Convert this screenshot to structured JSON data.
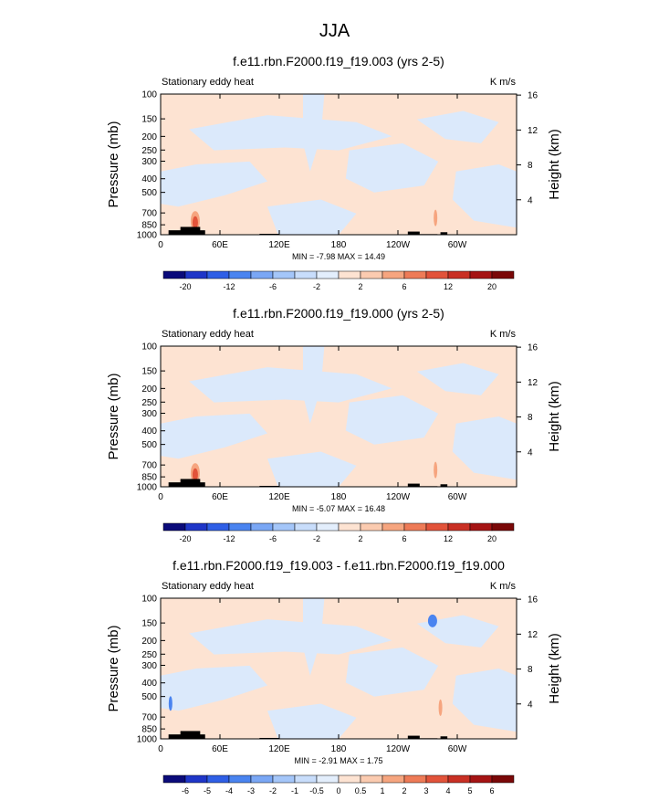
{
  "figure_title": "JJA",
  "chart_data": [
    {
      "type": "heatmap",
      "title": "f.e11.rbn.F2000.f19_f19.003 (yrs 2-5)",
      "left_label": "Stationary eddy heat",
      "units": "K m/s",
      "ylabel": "Pressure (mb)",
      "y2label": "Height (km)",
      "y_ticks": [
        "100",
        "150",
        "200",
        "250",
        "300",
        "400",
        "500",
        "700",
        "850",
        "1000"
      ],
      "y2_ticks": [
        "16",
        "12",
        "8",
        "4"
      ],
      "x_ticks": [
        "0",
        "60E",
        "120E",
        "180",
        "120W",
        "60W"
      ],
      "min_max_text": "MIN = -7.98  MAX = 14.49",
      "colorbar_levels": [
        "-20",
        "-12",
        "-6",
        "-2",
        "2",
        "6",
        "12",
        "20"
      ],
      "colorbar_colors": [
        "#0b0b7a",
        "#1f36c8",
        "#2f5fe6",
        "#4a84f0",
        "#7aa7f5",
        "#a4c6f9",
        "#c8ddfb",
        "#e3eefc",
        "#fde3d2",
        "#fbcbb0",
        "#f6a57f",
        "#ee7b57",
        "#e2533a",
        "#c93024",
        "#a51414",
        "#7a0808"
      ]
    },
    {
      "type": "heatmap",
      "title": "f.e11.rbn.F2000.f19_f19.000 (yrs 2-5)",
      "left_label": "Stationary eddy heat",
      "units": "K m/s",
      "ylabel": "Pressure (mb)",
      "y2label": "Height (km)",
      "y_ticks": [
        "100",
        "150",
        "200",
        "250",
        "300",
        "400",
        "500",
        "700",
        "850",
        "1000"
      ],
      "y2_ticks": [
        "16",
        "12",
        "8",
        "4"
      ],
      "x_ticks": [
        "0",
        "60E",
        "120E",
        "180",
        "120W",
        "60W"
      ],
      "min_max_text": "MIN = -5.07  MAX = 16.48",
      "colorbar_levels": [
        "-20",
        "-12",
        "-6",
        "-2",
        "2",
        "6",
        "12",
        "20"
      ],
      "colorbar_colors": [
        "#0b0b7a",
        "#1f36c8",
        "#2f5fe6",
        "#4a84f0",
        "#7aa7f5",
        "#a4c6f9",
        "#c8ddfb",
        "#e3eefc",
        "#fde3d2",
        "#fbcbb0",
        "#f6a57f",
        "#ee7b57",
        "#e2533a",
        "#c93024",
        "#a51414",
        "#7a0808"
      ]
    },
    {
      "type": "heatmap",
      "title": "f.e11.rbn.F2000.f19_f19.003 - f.e11.rbn.F2000.f19_f19.000",
      "left_label": "Stationary eddy heat",
      "units": "K m/s",
      "ylabel": "Pressure (mb)",
      "y2label": "Height (km)",
      "y_ticks": [
        "100",
        "150",
        "200",
        "250",
        "300",
        "400",
        "500",
        "700",
        "850",
        "1000"
      ],
      "y2_ticks": [
        "16",
        "12",
        "8",
        "4"
      ],
      "x_ticks": [
        "0",
        "60E",
        "120E",
        "180",
        "120W",
        "60W"
      ],
      "min_max_text": "MIN = -2.91  MAX =  1.75",
      "colorbar_levels": [
        "-6",
        "-5",
        "-4",
        "-3",
        "-2",
        "-1",
        "-0.5",
        "0",
        "0.5",
        "1",
        "2",
        "3",
        "4",
        "5",
        "6"
      ],
      "colorbar_colors": [
        "#0b0b7a",
        "#1f36c8",
        "#2f5fe6",
        "#4a84f0",
        "#7aa7f5",
        "#a4c6f9",
        "#c8ddfb",
        "#e3eefc",
        "#fde3d2",
        "#fbcbb0",
        "#f6a57f",
        "#ee7b57",
        "#e2533a",
        "#c93024",
        "#a51414",
        "#7a0808"
      ]
    }
  ],
  "fill_colors": {
    "positive": "#fde3d2",
    "negative": "#dbe9fb",
    "blob_red": "#e2533a",
    "blob_orange": "#f6a57f",
    "blob_blue": "#4a84f0",
    "topography": "#000000"
  }
}
